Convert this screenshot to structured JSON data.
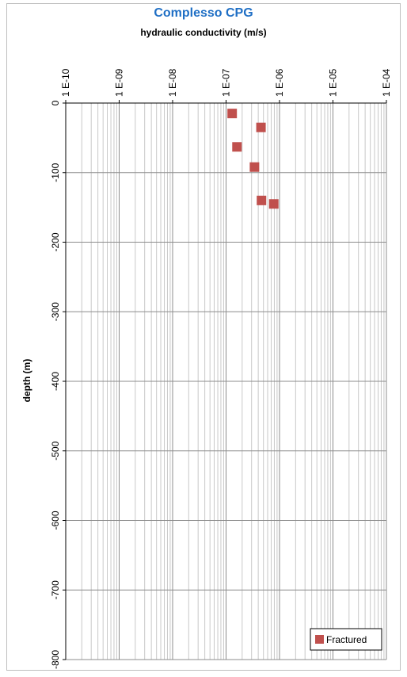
{
  "chart_data": {
    "type": "scatter",
    "title": "Complesso CPG",
    "xlabel": "hydraulic conductivity (m/s)",
    "ylabel": "depth (m)",
    "x_scale": "log",
    "xlim": [
      1e-10,
      0.0001
    ],
    "ylim": [
      -800,
      0
    ],
    "x_tick_labels": [
      "1 E-10",
      "1 E-09",
      "1 E-08",
      "1 E-07",
      "1 E-06",
      "1 E-05",
      "1 E-04"
    ],
    "y_ticks": [
      0,
      -100,
      -200,
      -300,
      -400,
      -500,
      -600,
      -700,
      -800
    ],
    "grid": true,
    "legend_position": "bottom-right",
    "series": [
      {
        "name": "Fractured",
        "color": "#c0504d",
        "marker": "square",
        "points": [
          {
            "x": 1.3e-07,
            "y": -15
          },
          {
            "x": 4.5e-07,
            "y": -35
          },
          {
            "x": 1.6e-07,
            "y": -63
          },
          {
            "x": 3.4e-07,
            "y": -92
          },
          {
            "x": 4.6e-07,
            "y": -140
          },
          {
            "x": 7.8e-07,
            "y": -145
          }
        ]
      }
    ]
  }
}
